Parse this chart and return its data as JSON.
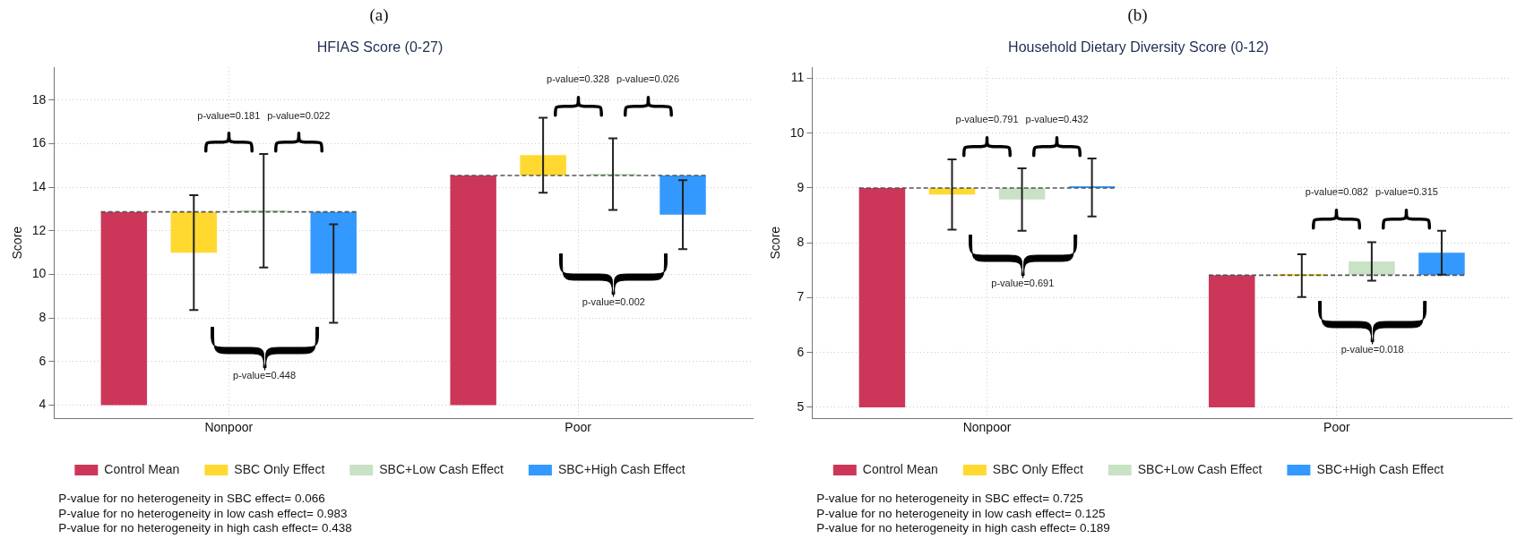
{
  "chart_data": [
    {
      "type": "bar",
      "title": "HFIAS Score (0-27)",
      "ylabel": "Score",
      "categories": [
        "Nonpoor",
        "Poor"
      ],
      "series": [
        {
          "name": "Control Mean",
          "color": "#cc3759",
          "base": [
            4,
            4
          ],
          "values": [
            8.87,
            10.54
          ]
        },
        {
          "name": "SBC Only Effect",
          "color": "#ffd92f",
          "base": [
            12.87,
            14.54
          ],
          "values": [
            -1.87,
            0.93
          ],
          "errors": [
            2.63,
            1.72
          ]
        },
        {
          "name": "SBC+Low Cash Effect",
          "color": "#c9e2c5",
          "base": [
            12.87,
            14.54
          ],
          "values": [
            0.05,
            0.06
          ],
          "errors": [
            2.6,
            1.64
          ]
        },
        {
          "name": "SBC+High Cash Effect",
          "color": "#3399ff",
          "base": [
            12.87,
            14.54
          ],
          "values": [
            -2.83,
            -1.8
          ],
          "errors": [
            2.26,
            1.58
          ]
        }
      ],
      "ylim": [
        3.4,
        19.5
      ],
      "yticks": [
        4,
        6,
        8,
        10,
        12,
        14,
        16,
        18
      ],
      "grid": true,
      "legend": "bottom",
      "ref_lines": [
        {
          "axis": "y",
          "value": 12.87,
          "line_style": "dashed",
          "color": "#555555"
        },
        {
          "axis": "y",
          "value": 14.54,
          "line_style": "dashed",
          "color": "#555555"
        }
      ],
      "annotations": [
        "(a)",
        "p-value=0.181",
        "p-value=0.022",
        "p-value=0.448",
        "p-value=0.328",
        "p-value=0.026",
        "p-value=0.002",
        "P-value for no heterogeneity in SBC effect= 0.066",
        "P-value for no heterogeneity in low cash effect= 0.983",
        "P-value for no heterogeneity in high cash effect= 0.438"
      ]
    },
    {
      "type": "bar",
      "title": "Household Dietary Diversity Score (0-12)",
      "ylabel": "Score",
      "categories": [
        "Nonpoor",
        "Poor"
      ],
      "series": [
        {
          "name": "Control Mean",
          "color": "#cc3759",
          "base": [
            5,
            5
          ],
          "values": [
            4.0,
            2.41
          ]
        },
        {
          "name": "SBC Only Effect",
          "color": "#ffd92f",
          "base": [
            9.0,
            7.41
          ],
          "values": [
            -0.12,
            -0.01
          ],
          "errors": [
            0.64,
            0.39
          ]
        },
        {
          "name": "SBC+Low Cash Effect",
          "color": "#c9e2c5",
          "base": [
            9.0,
            7.41
          ],
          "values": [
            -0.21,
            0.25
          ],
          "errors": [
            0.57,
            0.35
          ]
        },
        {
          "name": "SBC+High Cash Effect",
          "color": "#3399ff",
          "base": [
            9.0,
            7.41
          ],
          "values": [
            0.01,
            0.41
          ],
          "errors": [
            0.53,
            0.4
          ]
        }
      ],
      "ylim": [
        4.8,
        11.2
      ],
      "yticks": [
        5,
        6,
        7,
        8,
        9,
        10,
        11
      ],
      "grid": true,
      "legend": "bottom",
      "ref_lines": [
        {
          "axis": "y",
          "value": 9.0,
          "line_style": "dashed",
          "color": "#555555"
        },
        {
          "axis": "y",
          "value": 7.41,
          "line_style": "dashed",
          "color": "#555555"
        }
      ],
      "annotations": [
        "(b)",
        "p-value=0.791",
        "p-value=0.432",
        "p-value=0.691",
        "p-value=0.082",
        "p-value=0.315",
        "p-value=0.018",
        "P-value for no heterogeneity in SBC effect= 0.725",
        "P-value for no heterogeneity in low cash effect= 0.125",
        "P-value for no heterogeneity in high cash effect= 0.189"
      ]
    }
  ]
}
